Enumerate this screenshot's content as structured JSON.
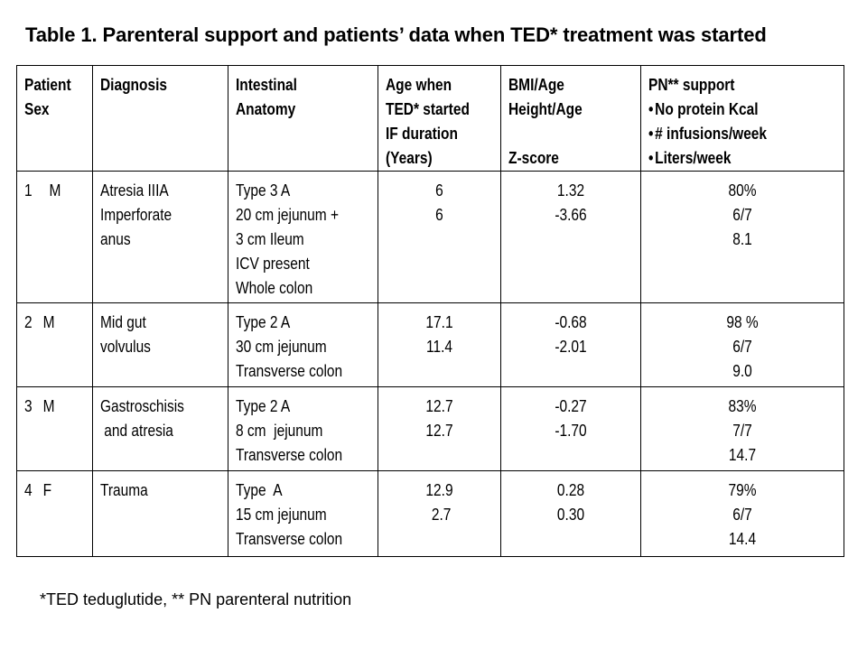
{
  "title": "Table 1.  Parenteral support and patients’ data when TED* treatment was started",
  "headers": {
    "patient": [
      "Patient",
      "Sex"
    ],
    "diagnosis": [
      "Diagnosis"
    ],
    "anatomy": [
      "Intestinal",
      "Anatomy"
    ],
    "age": [
      "Age when",
      "TED*  started",
      "IF duration",
      "(Years)"
    ],
    "bmi": [
      "BMI/Age",
      "Height/Age",
      "",
      "Z-score"
    ],
    "pn": [
      "PN** support",
      "No protein Kcal",
      "# infusions/week",
      "Liters/week"
    ]
  },
  "rows": [
    {
      "num": "1",
      "sex": "M",
      "diagnosis": [
        "Atresia IIIA",
        "Imperforate",
        "anus"
      ],
      "anatomy": [
        "Type 3 A",
        "20 cm jejunum +",
        "3 cm Ileum",
        "ICV present",
        "Whole colon"
      ],
      "age": [
        "6",
        "6"
      ],
      "bmi": [
        "1.32",
        "-3.66"
      ],
      "pn": [
        "80%",
        "6/7",
        "8.1"
      ]
    },
    {
      "num": "2",
      "sex": "M",
      "diagnosis": [
        "Mid gut",
        "volvulus"
      ],
      "anatomy": [
        "Type 2 A",
        "30 cm jejunum",
        "Transverse colon"
      ],
      "age": [
        "17.1",
        "11.4"
      ],
      "bmi": [
        "-0.68",
        "-2.01"
      ],
      "pn": [
        "98 %",
        "6/7",
        "9.0"
      ]
    },
    {
      "num": "3",
      "sex": "M",
      "diagnosis": [
        "Gastroschisis",
        " and atresia"
      ],
      "anatomy": [
        "Type 2 A",
        "8 cm  jejunum",
        "Transverse colon"
      ],
      "age": [
        "12.7",
        "12.7"
      ],
      "bmi": [
        "-0.27",
        "-1.70"
      ],
      "pn": [
        "83%",
        "7/7",
        "14.7"
      ]
    },
    {
      "num": "4",
      "sex": "F",
      "diagnosis": [
        "Trauma"
      ],
      "anatomy": [
        "Type  A",
        "15 cm jejunum",
        "Transverse colon"
      ],
      "age": [
        "12.9",
        " 2.7"
      ],
      "bmi": [
        "0.28",
        "0.30"
      ],
      "pn": [
        "79%",
        "6/7",
        "14.4"
      ]
    }
  ],
  "footnote": "*TED teduglutide, ** PN parenteral nutrition"
}
